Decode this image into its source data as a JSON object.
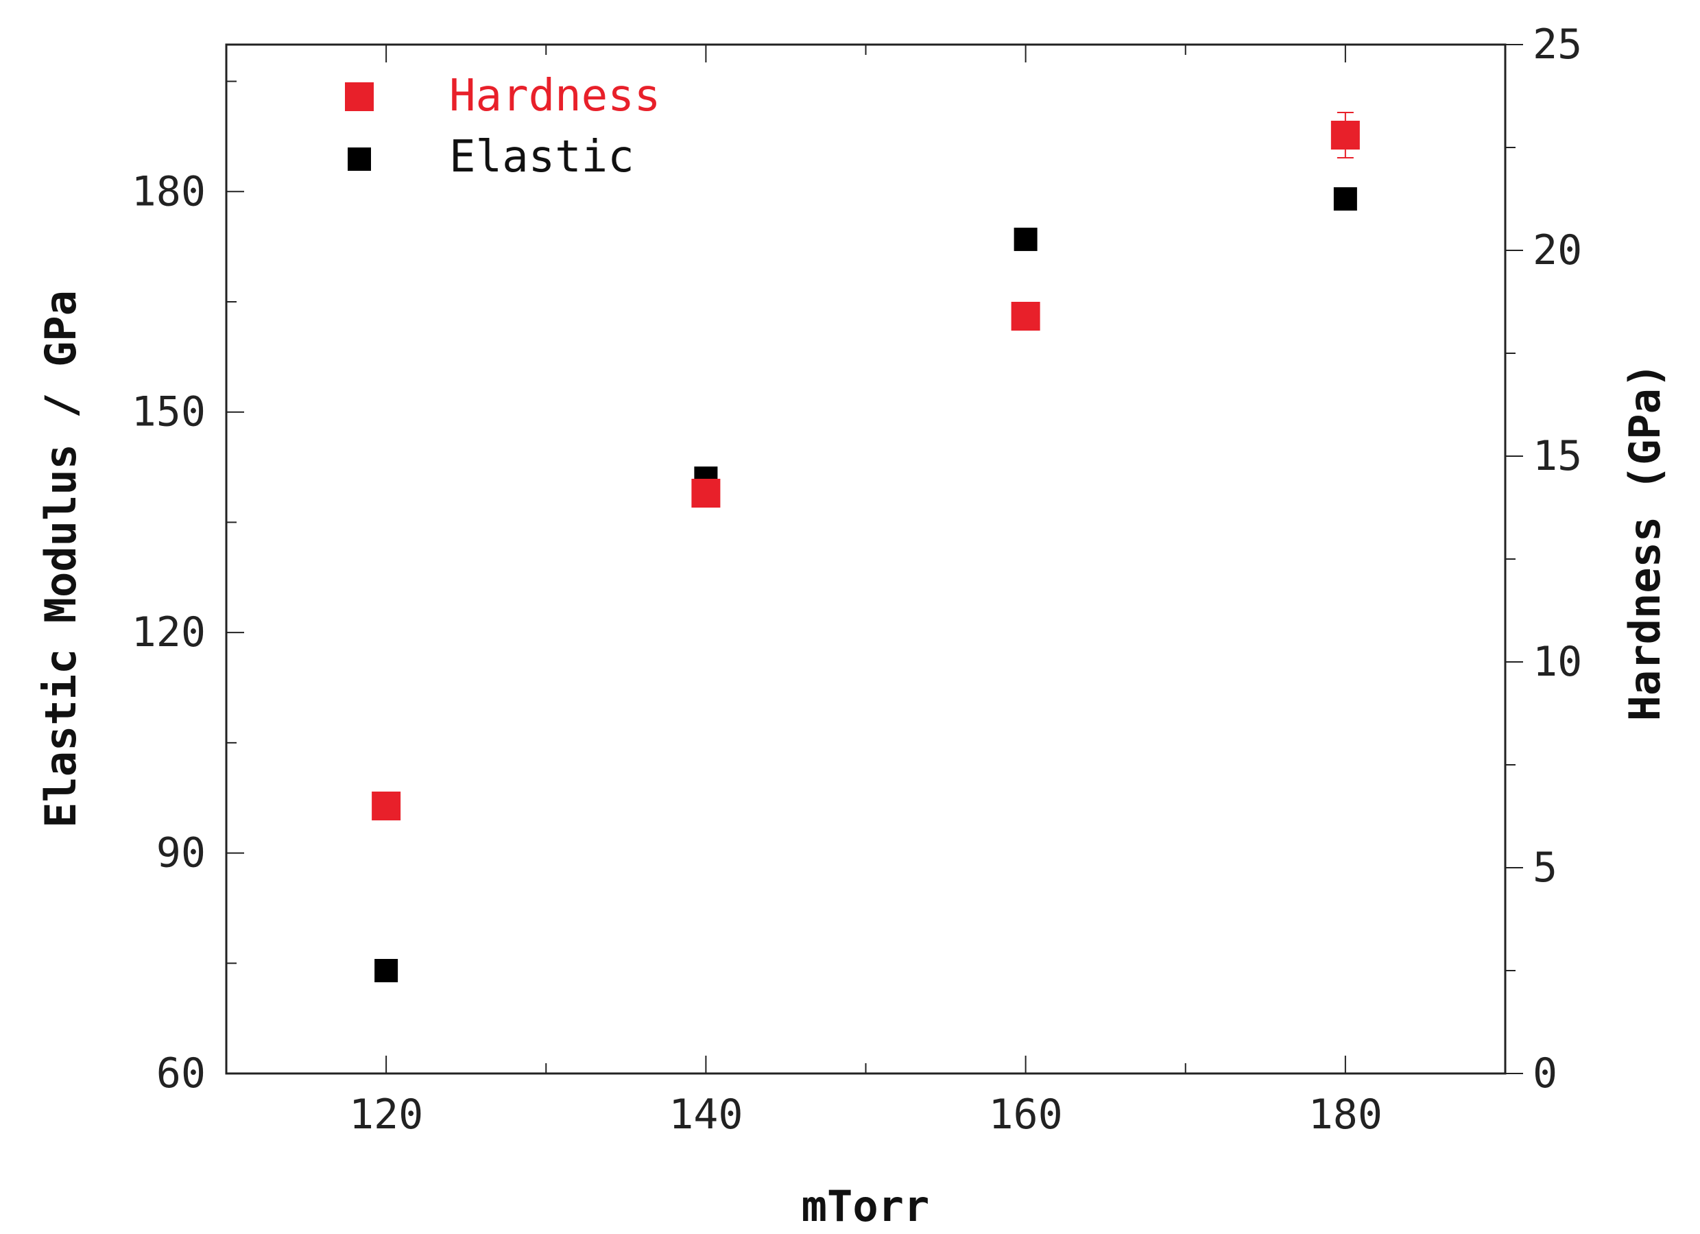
{
  "chart_data": {
    "type": "scatter",
    "xlabel": "mTorr",
    "ylabel_left": "Elastic Modulus / GPa",
    "ylabel_right": "Hardness (GPa)",
    "xlim": [
      110,
      190
    ],
    "ylim_left": [
      60,
      200
    ],
    "ylim_right": [
      0,
      25
    ],
    "x_ticks": [
      120,
      140,
      160,
      180
    ],
    "y_left_ticks": [
      60,
      90,
      120,
      150,
      180
    ],
    "y_right_ticks": [
      0,
      5,
      10,
      15,
      20,
      25
    ],
    "grid": false,
    "legend_position": "top-left",
    "series": [
      {
        "name": "Hardness",
        "axis": "right",
        "color": "#e8202a",
        "x": [
          120,
          140,
          160,
          180
        ],
        "y": [
          6.5,
          14.1,
          18.4,
          22.8
        ],
        "error": [
          0.15,
          0.3,
          0.25,
          0.55
        ]
      },
      {
        "name": "Elastic",
        "axis": "left",
        "color": "#000000",
        "x": [
          120,
          140,
          160,
          180
        ],
        "y": [
          74,
          141,
          173.5,
          179
        ],
        "error": [
          0,
          0,
          0,
          0
        ]
      }
    ]
  }
}
